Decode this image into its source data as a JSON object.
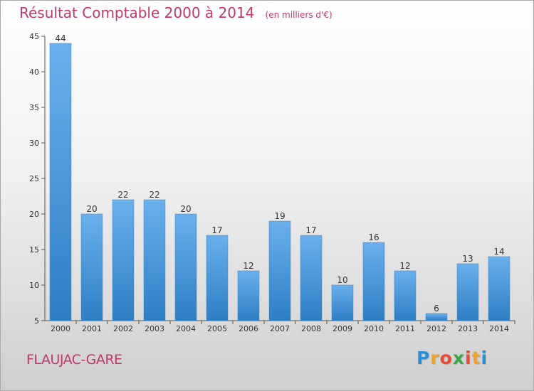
{
  "header": {
    "title": "Résultat Comptable 2000 à 2014",
    "subtitle": "(en milliers d'€)"
  },
  "footer": {
    "commune": "FLAUJAC-GARE",
    "logo_letters": [
      "P",
      "r",
      "o",
      "x",
      "i",
      "t",
      "i"
    ],
    "logo_colors": [
      "#2a8fd6",
      "#f0a22c",
      "#e94a35",
      "#3aa845",
      "#e94a35",
      "#f0a22c",
      "#2a8fd6"
    ]
  },
  "chart_data": {
    "type": "bar",
    "title": "Résultat Comptable 2000 à 2014",
    "subtitle": "(en milliers d'€)",
    "xlabel": "",
    "ylabel": "",
    "categories": [
      "2000",
      "2001",
      "2002",
      "2003",
      "2004",
      "2005",
      "2006",
      "2007",
      "2008",
      "2009",
      "2010",
      "2011",
      "2012",
      "2013",
      "2014"
    ],
    "values": [
      44,
      20,
      22,
      22,
      20,
      17,
      12,
      19,
      17,
      10,
      16,
      12,
      6,
      13,
      14
    ],
    "ylim": [
      5,
      45
    ],
    "yticks": [
      5,
      10,
      15,
      20,
      25,
      30,
      35,
      40,
      45
    ],
    "grid": false,
    "bar_color_top": "#6ab0ec",
    "bar_color_bottom": "#2e7ec4"
  }
}
